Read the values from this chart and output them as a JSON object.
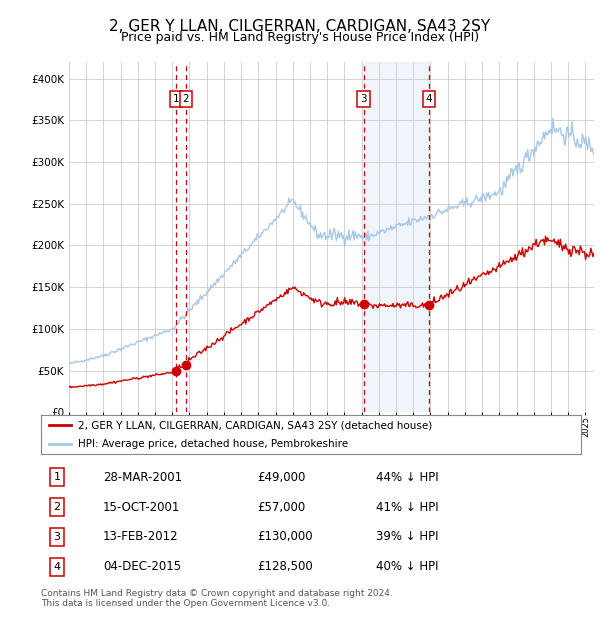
{
  "title": "2, GER Y LLAN, CILGERRAN, CARDIGAN, SA43 2SY",
  "subtitle": "Price paid vs. HM Land Registry's House Price Index (HPI)",
  "title_fontsize": 11,
  "subtitle_fontsize": 9,
  "bg_color": "#ffffff",
  "plot_bg_color": "#ffffff",
  "grid_color": "#cccccc",
  "hpi_color": "#a8c8e8",
  "price_color": "#cc0000",
  "sale_marker_color": "#cc0000",
  "dashed_line_color": "#cc0000",
  "shade_color": "#cce0f5",
  "legend_label_price": "2, GER Y LLAN, CILGERRAN, CARDIGAN, SA43 2SY (detached house)",
  "legend_label_hpi": "HPI: Average price, detached house, Pembrokeshire",
  "sales": [
    {
      "num": 1,
      "date_label": "28-MAR-2001",
      "date_year": 2001.23,
      "price": 49000,
      "pct": "44%",
      "direction": "↓"
    },
    {
      "num": 2,
      "date_label": "15-OCT-2001",
      "date_year": 2001.79,
      "price": 57000,
      "pct": "41%",
      "direction": "↓"
    },
    {
      "num": 3,
      "date_label": "13-FEB-2012",
      "date_year": 2012.12,
      "price": 130000,
      "pct": "39%",
      "direction": "↓"
    },
    {
      "num": 4,
      "date_label": "04-DEC-2015",
      "date_year": 2015.92,
      "price": 128500,
      "pct": "40%",
      "direction": "↓"
    }
  ],
  "footer": "Contains HM Land Registry data © Crown copyright and database right 2024.\nThis data is licensed under the Open Government Licence v3.0.",
  "ylim": [
    0,
    420000
  ],
  "yticks": [
    0,
    50000,
    100000,
    150000,
    200000,
    250000,
    300000,
    350000,
    400000
  ],
  "ytick_labels": [
    "£0",
    "£50K",
    "£100K",
    "£150K",
    "£200K",
    "£250K",
    "£300K",
    "£350K",
    "£400K"
  ],
  "xmin": 1995.0,
  "xmax": 2025.5
}
